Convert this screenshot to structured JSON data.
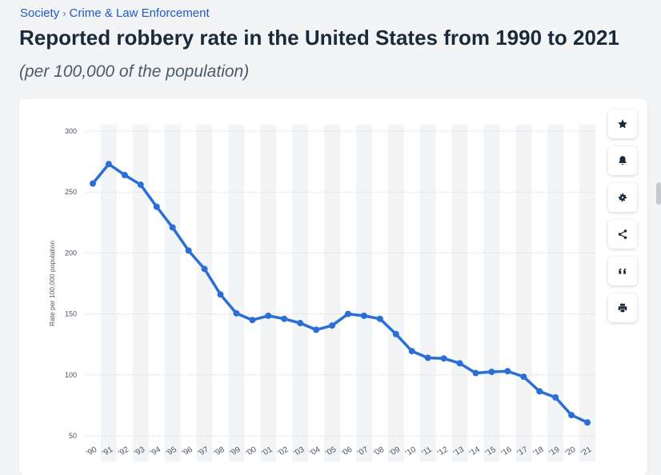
{
  "breadcrumb": {
    "items": [
      "Society",
      "Crime & Law Enforcement"
    ],
    "separator": "›"
  },
  "title": "Reported robbery rate in the United States from 1990 to 2021",
  "subtitle": "(per 100,000 of the population)",
  "toolbar": {
    "buttons": [
      {
        "name": "favorite",
        "icon": "star-icon"
      },
      {
        "name": "notification",
        "icon": "bell-icon"
      },
      {
        "name": "settings",
        "icon": "gear-icon"
      },
      {
        "name": "share",
        "icon": "share-icon"
      },
      {
        "name": "cite",
        "icon": "quote-icon"
      },
      {
        "name": "print",
        "icon": "print-icon"
      }
    ]
  },
  "colors": {
    "line": "#2a6fd6",
    "title": "#1b2a3a",
    "link": "#1f5bc6",
    "band": "#f3f4f6"
  },
  "chart_data": {
    "type": "line",
    "title": "",
    "xlabel": "",
    "ylabel": "Rate per 100,000 population",
    "categories": [
      "'90",
      "'91",
      "'92",
      "'93",
      "'94",
      "'95",
      "'96",
      "'97",
      "'98",
      "'99",
      "'00",
      "'01",
      "'02",
      "'03",
      "'04",
      "'05",
      "'06",
      "'07",
      "'08",
      "'09",
      "'10",
      "'11",
      "'12",
      "'13",
      "'14",
      "'15",
      "'16",
      "'17",
      "'18",
      "'19",
      "'20",
      "'21"
    ],
    "values": [
      257,
      273,
      264,
      256,
      238,
      221,
      202,
      187,
      166,
      150.5,
      145,
      148.5,
      146,
      142.5,
      137,
      140.5,
      150,
      148.5,
      146,
      133.5,
      119.5,
      114,
      113.5,
      109.5,
      101.5,
      102.5,
      103,
      98.5,
      86.5,
      81.5,
      67,
      61
    ],
    "yticks": [
      50,
      100,
      150,
      200,
      250,
      300
    ],
    "ylim": [
      50,
      300
    ],
    "grid": true
  }
}
